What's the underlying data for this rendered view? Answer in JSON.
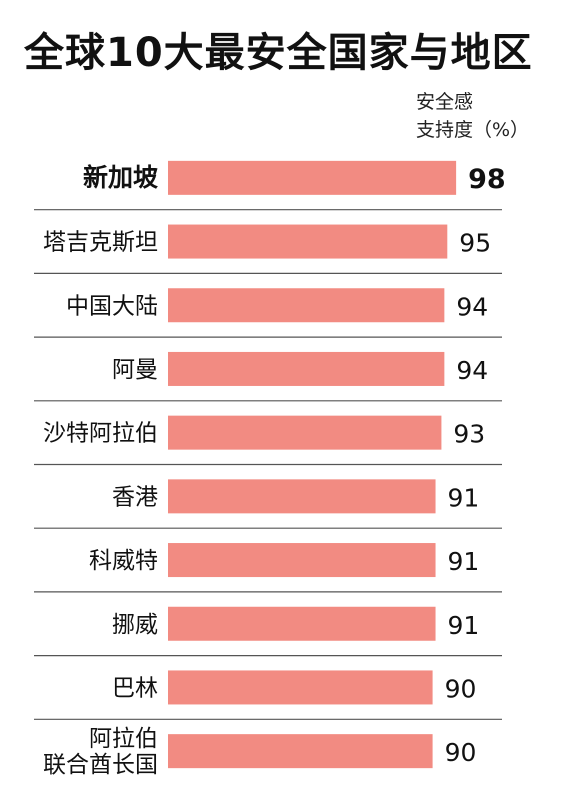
{
  "chart_data": {
    "type": "bar",
    "orientation": "horizontal",
    "title": "全球10大最安全国家与地区",
    "unit_label_line1": "安全感",
    "unit_label_line2": "支持度（%）",
    "categories": [
      [
        "新加坡"
      ],
      [
        "塔吉克斯坦"
      ],
      [
        "中国大陆"
      ],
      [
        "阿曼"
      ],
      [
        "沙特阿拉伯"
      ],
      [
        "香港"
      ],
      [
        "科威特"
      ],
      [
        "挪威"
      ],
      [
        "巴林"
      ],
      [
        "阿拉伯",
        "联合酋长国"
      ]
    ],
    "values": [
      98,
      95,
      94,
      94,
      93,
      91,
      91,
      91,
      90,
      90
    ],
    "highlight_index": 0,
    "bar_color": "#f28b82",
    "separator_color": "#555555"
  }
}
